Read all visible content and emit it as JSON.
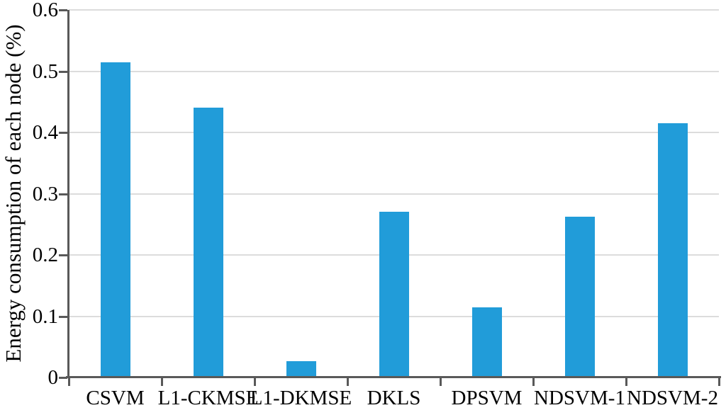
{
  "chart_data": {
    "type": "bar",
    "title": "",
    "xlabel": "",
    "ylabel": "Energy consumption of each node (%)",
    "categories": [
      "CSVM",
      "L1-CKMSE",
      "L1-DKMSE",
      "DKLS",
      "DPSVM",
      "NDSVM-1",
      "NDSVM-2"
    ],
    "values": [
      0.515,
      0.44,
      0.027,
      0.271,
      0.115,
      0.263,
      0.415
    ],
    "ylim": [
      0,
      0.6
    ],
    "yticks": [
      0,
      0.1,
      0.2,
      0.3,
      0.4,
      0.5,
      0.6
    ],
    "ytick_labels": [
      "0",
      "0.1",
      "0.2",
      "0.3",
      "0.4",
      "0.5",
      "0.6"
    ],
    "grid": true,
    "legend": false,
    "bar_color": "#219CD9",
    "gridline_color": "#DCDCDC",
    "axis_color": "#595959"
  }
}
